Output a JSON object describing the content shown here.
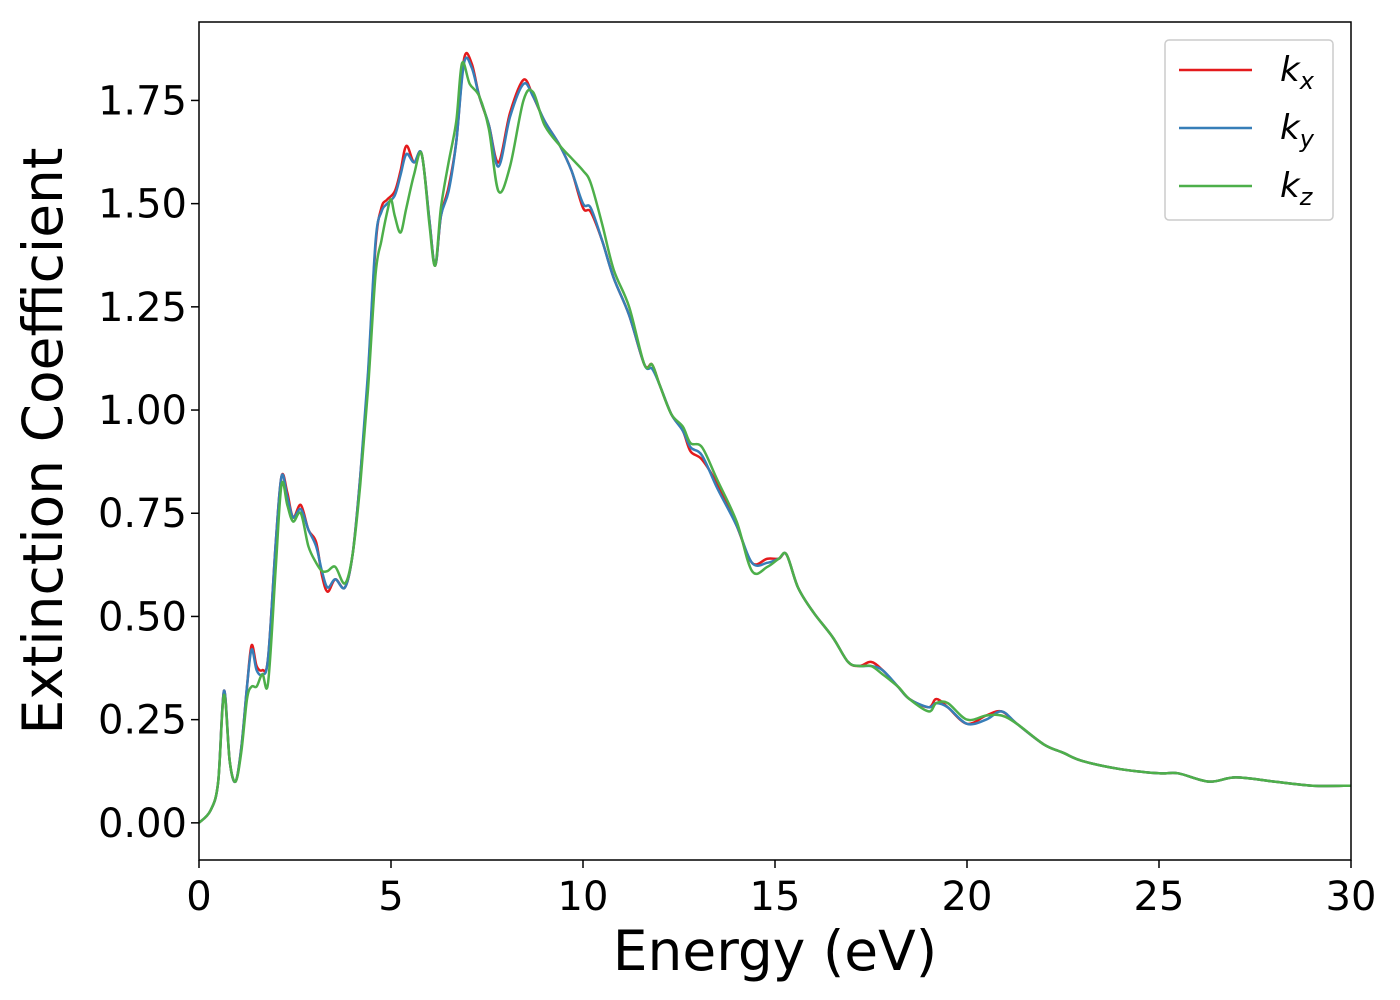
{
  "chart_data": {
    "type": "line",
    "title": "",
    "xlabel": "Energy (eV)",
    "ylabel": "Extinction Coefficient",
    "xlim": [
      0,
      30
    ],
    "ylim": [
      -0.09,
      1.94
    ],
    "xticks": [
      0,
      5,
      10,
      15,
      20,
      25,
      30
    ],
    "xtick_labels": [
      "0",
      "5",
      "10",
      "15",
      "20",
      "25",
      "30"
    ],
    "yticks": [
      0,
      0.25,
      0.5,
      0.75,
      1.0,
      1.25,
      1.5,
      1.75
    ],
    "ytick_labels": [
      "0.00",
      "0.25",
      "0.50",
      "0.75",
      "1.00",
      "1.25",
      "1.50",
      "1.75"
    ],
    "grid": false,
    "legend_position": "top-right",
    "series": [
      {
        "name": "k",
        "subscript": "x",
        "color": "#e41a1c",
        "points": [
          [
            0,
            0.0
          ],
          [
            0.3,
            0.03
          ],
          [
            0.5,
            0.1
          ],
          [
            0.65,
            0.32
          ],
          [
            0.8,
            0.15
          ],
          [
            0.95,
            0.1
          ],
          [
            1.1,
            0.18
          ],
          [
            1.25,
            0.33
          ],
          [
            1.37,
            0.43
          ],
          [
            1.5,
            0.38
          ],
          [
            1.65,
            0.37
          ],
          [
            1.8,
            0.4
          ],
          [
            2.0,
            0.68
          ],
          [
            2.15,
            0.84
          ],
          [
            2.3,
            0.8
          ],
          [
            2.45,
            0.74
          ],
          [
            2.65,
            0.77
          ],
          [
            2.85,
            0.71
          ],
          [
            3.05,
            0.68
          ],
          [
            3.2,
            0.6
          ],
          [
            3.35,
            0.56
          ],
          [
            3.55,
            0.59
          ],
          [
            3.8,
            0.57
          ],
          [
            4.0,
            0.65
          ],
          [
            4.2,
            0.84
          ],
          [
            4.4,
            1.08
          ],
          [
            4.6,
            1.4
          ],
          [
            4.75,
            1.49
          ],
          [
            4.9,
            1.51
          ],
          [
            5.1,
            1.53
          ],
          [
            5.25,
            1.58
          ],
          [
            5.4,
            1.64
          ],
          [
            5.6,
            1.6
          ],
          [
            5.8,
            1.62
          ],
          [
            6.0,
            1.46
          ],
          [
            6.15,
            1.35
          ],
          [
            6.3,
            1.47
          ],
          [
            6.5,
            1.54
          ],
          [
            6.7,
            1.65
          ],
          [
            6.9,
            1.85
          ],
          [
            7.1,
            1.84
          ],
          [
            7.3,
            1.76
          ],
          [
            7.55,
            1.69
          ],
          [
            7.8,
            1.6
          ],
          [
            8.1,
            1.72
          ],
          [
            8.45,
            1.8
          ],
          [
            8.7,
            1.76
          ],
          [
            9.0,
            1.7
          ],
          [
            9.4,
            1.64
          ],
          [
            9.7,
            1.58
          ],
          [
            10.0,
            1.49
          ],
          [
            10.2,
            1.48
          ],
          [
            10.5,
            1.41
          ],
          [
            10.8,
            1.32
          ],
          [
            11.2,
            1.23
          ],
          [
            11.6,
            1.11
          ],
          [
            11.8,
            1.11
          ],
          [
            12.0,
            1.06
          ],
          [
            12.3,
            0.99
          ],
          [
            12.6,
            0.95
          ],
          [
            12.8,
            0.9
          ],
          [
            13.1,
            0.88
          ],
          [
            13.5,
            0.82
          ],
          [
            14.0,
            0.72
          ],
          [
            14.4,
            0.63
          ],
          [
            14.8,
            0.64
          ],
          [
            15.1,
            0.64
          ],
          [
            15.3,
            0.65
          ],
          [
            15.6,
            0.57
          ],
          [
            16.0,
            0.51
          ],
          [
            16.5,
            0.45
          ],
          [
            16.9,
            0.39
          ],
          [
            17.2,
            0.38
          ],
          [
            17.5,
            0.39
          ],
          [
            17.8,
            0.37
          ],
          [
            18.2,
            0.33
          ],
          [
            18.5,
            0.3
          ],
          [
            19.0,
            0.28
          ],
          [
            19.2,
            0.3
          ],
          [
            19.5,
            0.28
          ],
          [
            20.0,
            0.24
          ],
          [
            20.5,
            0.26
          ],
          [
            20.9,
            0.27
          ],
          [
            21.3,
            0.24
          ],
          [
            22.0,
            0.19
          ],
          [
            22.5,
            0.17
          ],
          [
            23.0,
            0.15
          ],
          [
            24.0,
            0.13
          ],
          [
            25.0,
            0.12
          ],
          [
            25.5,
            0.12
          ],
          [
            26.3,
            0.1
          ],
          [
            27.0,
            0.11
          ],
          [
            28.0,
            0.1
          ],
          [
            29.0,
            0.09
          ],
          [
            30.0,
            0.09
          ]
        ]
      },
      {
        "name": "k",
        "subscript": "y",
        "color": "#377eb8",
        "points": [
          [
            0,
            0.0
          ],
          [
            0.3,
            0.03
          ],
          [
            0.5,
            0.1
          ],
          [
            0.65,
            0.32
          ],
          [
            0.8,
            0.15
          ],
          [
            0.95,
            0.1
          ],
          [
            1.1,
            0.18
          ],
          [
            1.25,
            0.33
          ],
          [
            1.37,
            0.42
          ],
          [
            1.5,
            0.37
          ],
          [
            1.65,
            0.36
          ],
          [
            1.8,
            0.4
          ],
          [
            2.0,
            0.68
          ],
          [
            2.15,
            0.84
          ],
          [
            2.3,
            0.79
          ],
          [
            2.45,
            0.74
          ],
          [
            2.65,
            0.76
          ],
          [
            2.85,
            0.71
          ],
          [
            3.05,
            0.67
          ],
          [
            3.2,
            0.61
          ],
          [
            3.35,
            0.57
          ],
          [
            3.55,
            0.59
          ],
          [
            3.8,
            0.57
          ],
          [
            4.0,
            0.65
          ],
          [
            4.2,
            0.84
          ],
          [
            4.4,
            1.09
          ],
          [
            4.6,
            1.41
          ],
          [
            4.75,
            1.48
          ],
          [
            4.9,
            1.5
          ],
          [
            5.1,
            1.52
          ],
          [
            5.25,
            1.57
          ],
          [
            5.4,
            1.62
          ],
          [
            5.6,
            1.6
          ],
          [
            5.8,
            1.62
          ],
          [
            6.0,
            1.46
          ],
          [
            6.15,
            1.35
          ],
          [
            6.3,
            1.47
          ],
          [
            6.5,
            1.53
          ],
          [
            6.7,
            1.65
          ],
          [
            6.9,
            1.84
          ],
          [
            7.1,
            1.83
          ],
          [
            7.3,
            1.76
          ],
          [
            7.55,
            1.69
          ],
          [
            7.8,
            1.59
          ],
          [
            8.1,
            1.71
          ],
          [
            8.45,
            1.79
          ],
          [
            8.7,
            1.76
          ],
          [
            9.0,
            1.7
          ],
          [
            9.4,
            1.64
          ],
          [
            9.7,
            1.58
          ],
          [
            10.0,
            1.5
          ],
          [
            10.2,
            1.49
          ],
          [
            10.5,
            1.41
          ],
          [
            10.8,
            1.32
          ],
          [
            11.2,
            1.23
          ],
          [
            11.6,
            1.11
          ],
          [
            11.8,
            1.1
          ],
          [
            12.0,
            1.06
          ],
          [
            12.3,
            0.99
          ],
          [
            12.6,
            0.95
          ],
          [
            12.8,
            0.91
          ],
          [
            13.1,
            0.89
          ],
          [
            13.5,
            0.81
          ],
          [
            14.0,
            0.72
          ],
          [
            14.4,
            0.63
          ],
          [
            14.8,
            0.63
          ],
          [
            15.1,
            0.64
          ],
          [
            15.3,
            0.65
          ],
          [
            15.6,
            0.57
          ],
          [
            16.0,
            0.51
          ],
          [
            16.5,
            0.45
          ],
          [
            16.9,
            0.39
          ],
          [
            17.2,
            0.38
          ],
          [
            17.5,
            0.38
          ],
          [
            17.8,
            0.37
          ],
          [
            18.2,
            0.33
          ],
          [
            18.5,
            0.3
          ],
          [
            19.0,
            0.28
          ],
          [
            19.2,
            0.29
          ],
          [
            19.5,
            0.28
          ],
          [
            20.0,
            0.24
          ],
          [
            20.5,
            0.25
          ],
          [
            20.9,
            0.27
          ],
          [
            21.3,
            0.24
          ],
          [
            22.0,
            0.19
          ],
          [
            22.5,
            0.17
          ],
          [
            23.0,
            0.15
          ],
          [
            24.0,
            0.13
          ],
          [
            25.0,
            0.12
          ],
          [
            25.5,
            0.12
          ],
          [
            26.3,
            0.1
          ],
          [
            27.0,
            0.11
          ],
          [
            28.0,
            0.1
          ],
          [
            29.0,
            0.09
          ],
          [
            30.0,
            0.09
          ]
        ]
      },
      {
        "name": "k",
        "subscript": "z",
        "color": "#4daf4a",
        "points": [
          [
            0,
            0.0
          ],
          [
            0.3,
            0.03
          ],
          [
            0.5,
            0.1
          ],
          [
            0.65,
            0.31
          ],
          [
            0.8,
            0.15
          ],
          [
            0.95,
            0.1
          ],
          [
            1.1,
            0.17
          ],
          [
            1.25,
            0.3
          ],
          [
            1.37,
            0.33
          ],
          [
            1.5,
            0.33
          ],
          [
            1.65,
            0.36
          ],
          [
            1.8,
            0.34
          ],
          [
            2.0,
            0.62
          ],
          [
            2.15,
            0.82
          ],
          [
            2.3,
            0.77
          ],
          [
            2.45,
            0.73
          ],
          [
            2.65,
            0.75
          ],
          [
            2.85,
            0.67
          ],
          [
            3.05,
            0.63
          ],
          [
            3.2,
            0.61
          ],
          [
            3.35,
            0.61
          ],
          [
            3.55,
            0.62
          ],
          [
            3.8,
            0.58
          ],
          [
            4.0,
            0.65
          ],
          [
            4.2,
            0.82
          ],
          [
            4.4,
            1.05
          ],
          [
            4.6,
            1.33
          ],
          [
            4.75,
            1.41
          ],
          [
            4.9,
            1.48
          ],
          [
            5.0,
            1.51
          ],
          [
            5.1,
            1.47
          ],
          [
            5.25,
            1.43
          ],
          [
            5.4,
            1.49
          ],
          [
            5.6,
            1.57
          ],
          [
            5.8,
            1.62
          ],
          [
            6.0,
            1.45
          ],
          [
            6.15,
            1.35
          ],
          [
            6.3,
            1.49
          ],
          [
            6.5,
            1.6
          ],
          [
            6.7,
            1.7
          ],
          [
            6.85,
            1.84
          ],
          [
            7.05,
            1.79
          ],
          [
            7.3,
            1.76
          ],
          [
            7.55,
            1.68
          ],
          [
            7.8,
            1.53
          ],
          [
            8.1,
            1.59
          ],
          [
            8.45,
            1.75
          ],
          [
            8.7,
            1.77
          ],
          [
            9.0,
            1.69
          ],
          [
            9.4,
            1.64
          ],
          [
            9.7,
            1.61
          ],
          [
            10.0,
            1.58
          ],
          [
            10.2,
            1.55
          ],
          [
            10.5,
            1.45
          ],
          [
            10.8,
            1.34
          ],
          [
            11.2,
            1.25
          ],
          [
            11.6,
            1.11
          ],
          [
            11.8,
            1.11
          ],
          [
            12.0,
            1.06
          ],
          [
            12.3,
            0.99
          ],
          [
            12.6,
            0.96
          ],
          [
            12.8,
            0.92
          ],
          [
            13.1,
            0.91
          ],
          [
            13.5,
            0.83
          ],
          [
            14.0,
            0.73
          ],
          [
            14.4,
            0.61
          ],
          [
            14.8,
            0.62
          ],
          [
            15.1,
            0.64
          ],
          [
            15.3,
            0.65
          ],
          [
            15.6,
            0.57
          ],
          [
            16.0,
            0.51
          ],
          [
            16.5,
            0.45
          ],
          [
            16.9,
            0.39
          ],
          [
            17.2,
            0.38
          ],
          [
            17.5,
            0.38
          ],
          [
            17.8,
            0.36
          ],
          [
            18.2,
            0.33
          ],
          [
            18.5,
            0.3
          ],
          [
            19.0,
            0.27
          ],
          [
            19.2,
            0.29
          ],
          [
            19.5,
            0.29
          ],
          [
            20.0,
            0.25
          ],
          [
            20.5,
            0.26
          ],
          [
            20.9,
            0.26
          ],
          [
            21.3,
            0.24
          ],
          [
            22.0,
            0.19
          ],
          [
            22.5,
            0.17
          ],
          [
            23.0,
            0.15
          ],
          [
            24.0,
            0.13
          ],
          [
            25.0,
            0.12
          ],
          [
            25.5,
            0.12
          ],
          [
            26.3,
            0.1
          ],
          [
            27.0,
            0.11
          ],
          [
            28.0,
            0.1
          ],
          [
            29.0,
            0.09
          ],
          [
            30.0,
            0.09
          ]
        ]
      }
    ]
  }
}
